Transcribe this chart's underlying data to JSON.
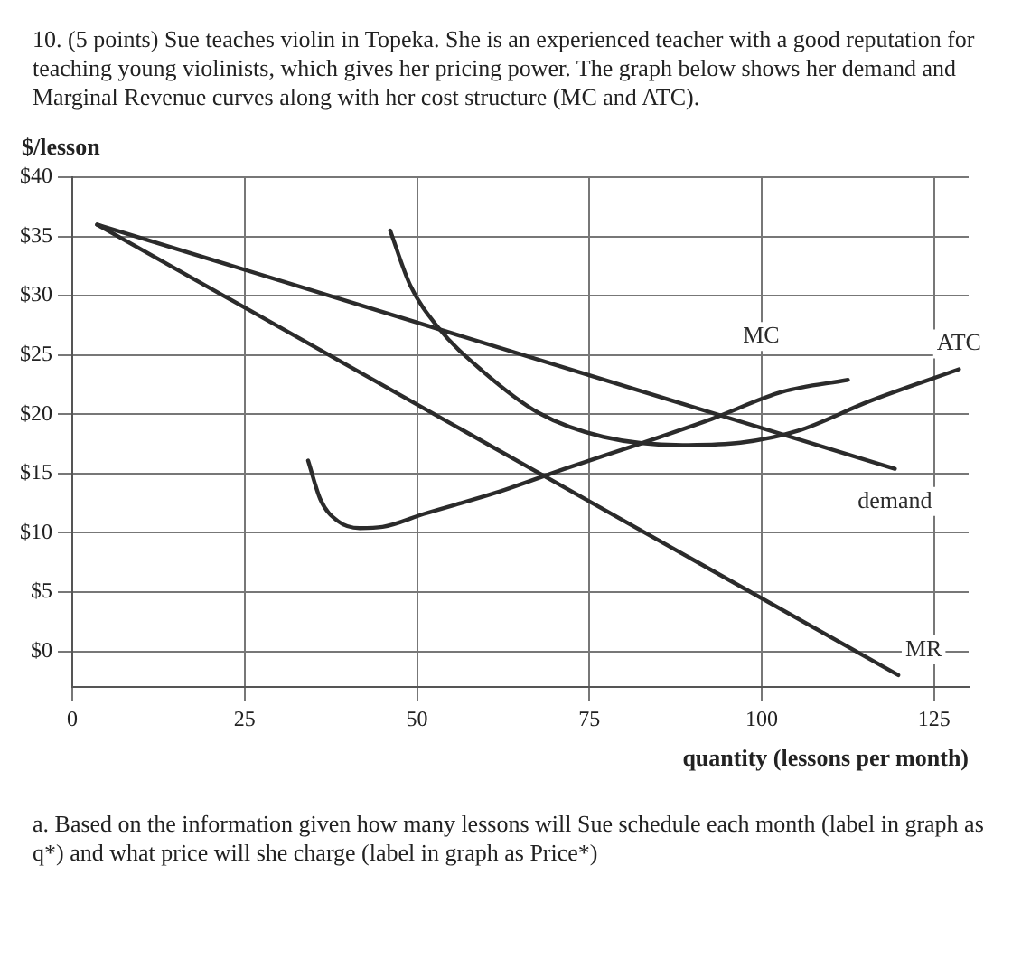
{
  "chart_data": {
    "type": "line",
    "title": "10. (5 points) Sue teaches violin in Topeka. She is an experienced teacher with a good reputation for teaching young violinists, which gives her pricing power. The graph below shows her demand and Marginal Revenue curves along with her cost structure (MC and ATC).",
    "xlabel": "quantity (lessons per month)",
    "ylabel": "$/lesson",
    "xlim": [
      0,
      130
    ],
    "xticks": [
      0,
      25,
      50,
      75,
      100,
      125
    ],
    "ylim": [
      -3,
      40
    ],
    "yticks": [
      {
        "value": 0,
        "label": "$0"
      },
      {
        "value": 5,
        "label": "$5"
      },
      {
        "value": 10,
        "label": "$10"
      },
      {
        "value": 15,
        "label": "$15"
      },
      {
        "value": 20,
        "label": "$20"
      },
      {
        "value": 25,
        "label": "$25"
      },
      {
        "value": 30,
        "label": "$30"
      },
      {
        "value": 35,
        "label": "$35"
      },
      {
        "value": 40,
        "label": "$40"
      }
    ],
    "grid": true,
    "legend": false,
    "marker": "none",
    "line_style": "solid",
    "series": [
      {
        "name": "demand",
        "color": "#2b2b2b",
        "x": [
          3.6,
          119.3
        ],
        "values": [
          36,
          15.4
        ]
      },
      {
        "name": "MR",
        "color": "#2b2b2b",
        "x": [
          3.6,
          119.8
        ],
        "values": [
          36,
          -2
        ]
      },
      {
        "name": "MC",
        "color": "#2b2b2b",
        "x": [
          34.2,
          36,
          38.5,
          41.7,
          45,
          51,
          61.5,
          71.9,
          82.3,
          92.7,
          103,
          112.5
        ],
        "values": [
          16.1,
          12.8,
          11.0,
          10.4,
          10.5,
          11.6,
          13.4,
          15.5,
          17.5,
          19.6,
          21.9,
          22.9
        ]
      },
      {
        "name": "ATC",
        "color": "#2b2b2b",
        "x": [
          46.1,
          49,
          53.1,
          59.4,
          67.7,
          77,
          88.5,
          96.9,
          105.2,
          115.6,
          128.6
        ],
        "values": [
          35.5,
          30.9,
          27.3,
          23.7,
          20.1,
          18.1,
          17.4,
          17.6,
          18.6,
          21.1,
          23.8
        ]
      }
    ],
    "annotations": [
      "a.  Based on the information given how many lessons will Sue schedule each month (label in graph as q*) and what price will she charge (label in graph as Price*)"
    ]
  }
}
